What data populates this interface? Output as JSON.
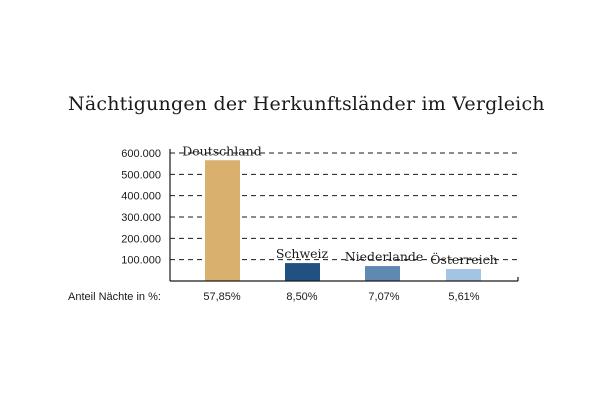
{
  "chart_data": {
    "type": "bar",
    "title": "Nächtigungen der Herkunftsländer im Vergleich",
    "categories": [
      "Deutschland",
      "Schweiz",
      "Niederlande",
      "Österreich"
    ],
    "values": [
      566000,
      84000,
      70000,
      56000
    ],
    "colors": [
      "#d9b06d",
      "#1f5282",
      "#5f88b3",
      "#a3c4e2"
    ],
    "yticks": [
      "100.000",
      "200.000",
      "300.000",
      "400.000",
      "500.000",
      "600.000"
    ],
    "ylim": [
      0,
      600000
    ],
    "grid": true,
    "grid_style": "dashed",
    "share_label": "Anteil Nächte in %:",
    "shares": [
      "57,85%",
      "8,50%",
      "7,07%",
      "5,61%"
    ]
  }
}
